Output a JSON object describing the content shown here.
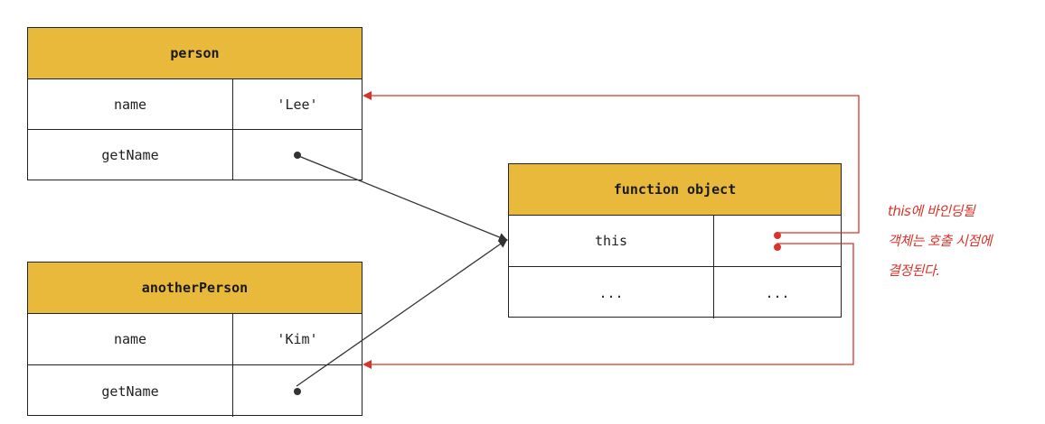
{
  "person": {
    "title": "person",
    "rows": [
      {
        "key": "name",
        "value": "'Lee'"
      },
      {
        "key": "getName",
        "value": ""
      }
    ]
  },
  "anotherPerson": {
    "title": "anotherPerson",
    "rows": [
      {
        "key": "name",
        "value": "'Kim'"
      },
      {
        "key": "getName",
        "value": ""
      }
    ]
  },
  "functionObject": {
    "title": "function object",
    "rows": [
      {
        "key": "this",
        "value": ""
      },
      {
        "key": "...",
        "value": "..."
      }
    ]
  },
  "note": {
    "lines": [
      "this에 바인딩될",
      "객체는 호출 시점에",
      "결정된다."
    ]
  },
  "colors": {
    "header": "#e9b93c",
    "accent": "#d9342b",
    "line": "#333333"
  }
}
